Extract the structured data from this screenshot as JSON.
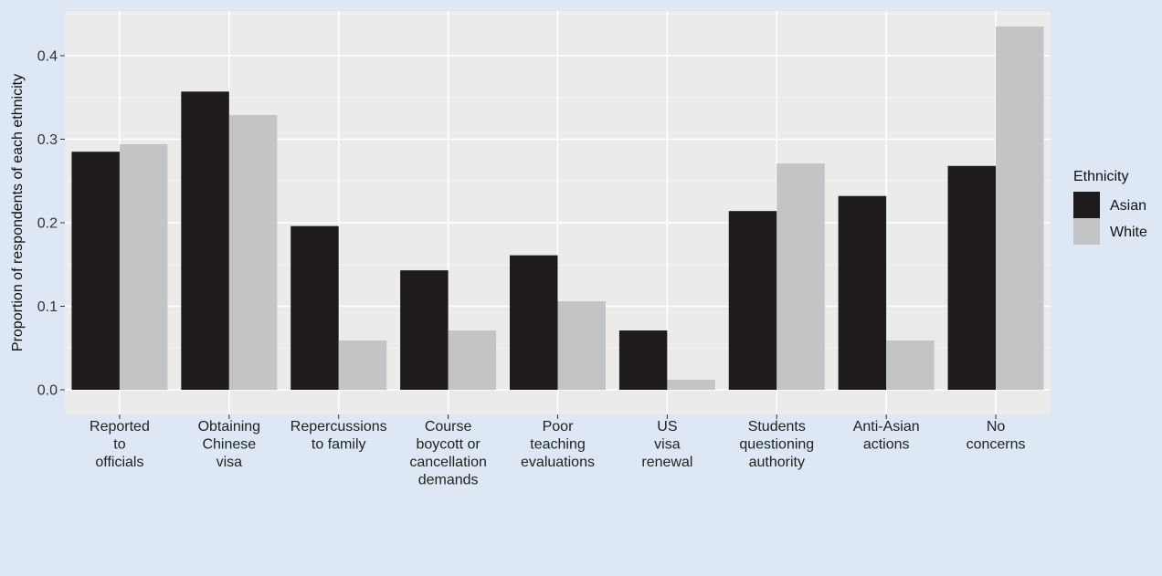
{
  "chart_data": {
    "type": "bar",
    "ylabel": "Proportion of respondents of each ethnicity",
    "xlabel": "",
    "ylim": [
      0,
      0.45
    ],
    "yticks": [
      "0.0",
      "0.1",
      "0.2",
      "0.3",
      "0.4"
    ],
    "ytick_values": [
      0,
      0.1,
      0.2,
      0.3,
      0.4
    ],
    "categories": [
      [
        "Reported",
        "to",
        "officials"
      ],
      [
        "Obtaining",
        "Chinese",
        "visa"
      ],
      [
        "Repercussions",
        "to family"
      ],
      [
        "Course",
        "boycott or",
        "cancellation",
        "demands"
      ],
      [
        "Poor",
        "teaching",
        "evaluations"
      ],
      [
        "US",
        "visa",
        "renewal"
      ],
      [
        "Students",
        "questioning",
        "authority"
      ],
      [
        "Anti-Asian",
        "actions"
      ],
      [
        "No",
        "concerns"
      ]
    ],
    "series": [
      {
        "name": "Asian",
        "color": "#1f1a1b",
        "values": [
          0.285,
          0.357,
          0.196,
          0.143,
          0.161,
          0.071,
          0.214,
          0.232,
          0.268
        ]
      },
      {
        "name": "White",
        "color": "#c3c4c6",
        "values": [
          0.294,
          0.329,
          0.059,
          0.071,
          0.106,
          0.012,
          0.271,
          0.059,
          0.435
        ]
      }
    ],
    "legend": {
      "title": "Ethnicity",
      "position": "right"
    },
    "grid": true
  }
}
